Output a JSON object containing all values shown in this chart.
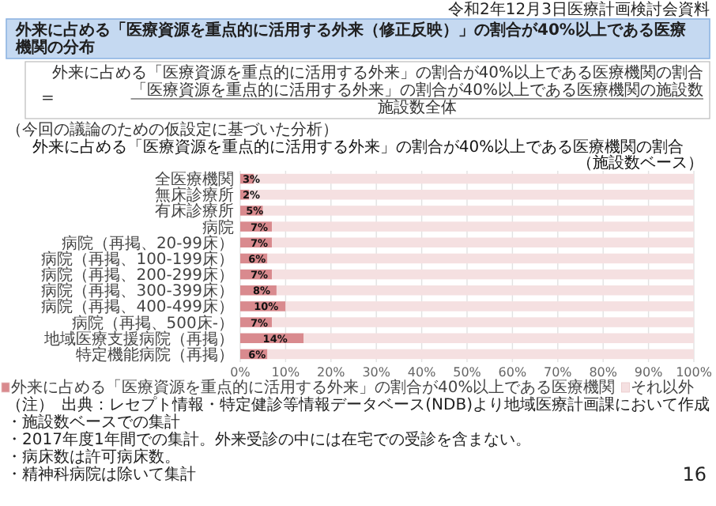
{
  "chart_data": {
    "type": "bar",
    "orientation": "horizontal",
    "stacked": true,
    "title": "外来に占める「医療資源を重点的に活用する外来（修正反映）」の割合が40%以上である医療機関の分布",
    "subtitle": "外来に占める「医療資源を重点的に活用する外来」の割合が40%以上である医療機関の割合",
    "annotations": [
      "令和2年12月3日医療計画検討会資料",
      "外来に占める「医療資源を重点的に活用する外来」の割合が40%以上である医療機関の割合",
      "=",
      "「医療資源を重点的に活用する外来」の割合が40%以上である医療機関の施設数",
      "施設数全体",
      "（今回の議論のための仮設定に基づいた分析）",
      "（施設数ベース）",
      "（注）",
      "・施設数ベースでの集計",
      "・2017年度1年間での集計。外来受診の中には在宅での受診を含まない。",
      "・病床数は許可病床数。",
      "・精神科病院は除いて集計",
      "出典：レセプト情報・特定健診等情報データベース(NDB)より地域医療計画課において作成",
      "16"
    ],
    "categories": [
      "全医療機関",
      "無床診療所",
      "有床診療所",
      "病院",
      "病院（再掲、20-99床）",
      "病院（再掲、100-199床）",
      "病院（再掲、200-299床）",
      "病院（再掲、300-399床）",
      "病院（再掲、400-499床）",
      "病院（再掲、500床-）",
      "地域医療支援病院（再掲）",
      "特定機能病院（再掲）"
    ],
    "series": [
      {
        "name": "外来に占める「医療資源を重点的に活用する外来」の割合が40%以上である医療機関",
        "color": "#d98a8e",
        "values": [
          3,
          2,
          5,
          7,
          7,
          6,
          7,
          8,
          10,
          7,
          14,
          6
        ],
        "value_labels": [
          "3%",
          "2%",
          "5%",
          "7%",
          "7%",
          "6%",
          "7%",
          "8%",
          "10%",
          "7%",
          "14%",
          "6%"
        ]
      },
      {
        "name": "それ以外",
        "color": "#f5e0e1",
        "values": [
          97,
          98,
          95,
          93,
          93,
          94,
          93,
          92,
          90,
          93,
          86,
          94
        ]
      }
    ],
    "xlim": [
      0,
      100
    ],
    "xticks": [
      {
        "value": 0,
        "label": "0%"
      },
      {
        "value": 10,
        "label": "10%"
      },
      {
        "value": 20,
        "label": "20%"
      },
      {
        "value": 30,
        "label": "30%"
      },
      {
        "value": 40,
        "label": "40%"
      },
      {
        "value": 50,
        "label": "50%"
      },
      {
        "value": 60,
        "label": "60%"
      },
      {
        "value": 70,
        "label": "70%"
      },
      {
        "value": 80,
        "label": "80%"
      },
      {
        "value": 90,
        "label": "90%"
      },
      {
        "value": 100,
        "label": "100%"
      }
    ],
    "grid": "x",
    "legend": "bottom"
  }
}
